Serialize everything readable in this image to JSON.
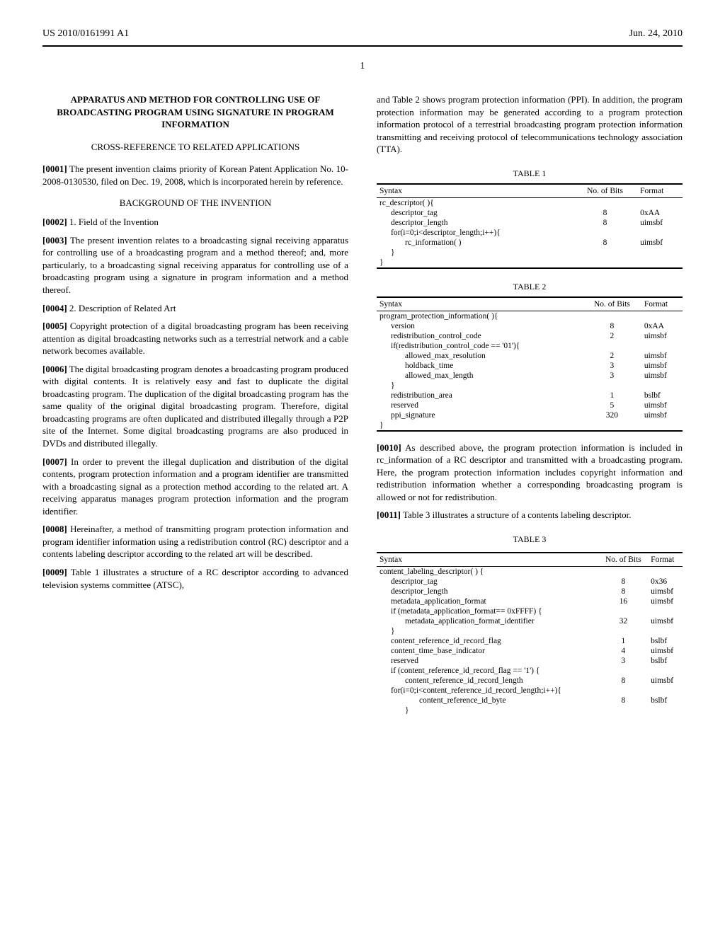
{
  "header": {
    "pub_number": "US 2010/0161991 A1",
    "pub_date": "Jun. 24, 2010"
  },
  "page_number": "1",
  "left_col": {
    "title": "APPARATUS AND METHOD FOR CONTROLLING USE OF BROADCASTING PROGRAM USING SIGNATURE IN PROGRAM INFORMATION",
    "cross_ref_head": "CROSS-REFERENCE TO RELATED APPLICATIONS",
    "p1_num": "[0001]",
    "p1": "The present invention claims priority of Korean Patent Application No. 10-2008-0130530, filed on Dec. 19, 2008, which is incorporated herein by reference.",
    "bg_head": "BACKGROUND OF THE INVENTION",
    "p2_num": "[0002]",
    "p2": "1. Field of the Invention",
    "p3_num": "[0003]",
    "p3": "The present invention relates to a broadcasting signal receiving apparatus for controlling use of a broadcasting program and a method thereof; and, more particularly, to a broadcasting signal receiving apparatus for controlling use of a broadcasting program using a signature in program information and a method thereof.",
    "p4_num": "[0004]",
    "p4": "2. Description of Related Art",
    "p5_num": "[0005]",
    "p5": "Copyright protection of a digital broadcasting program has been receiving attention as digital broadcasting networks such as a terrestrial network and a cable network becomes available.",
    "p6_num": "[0006]",
    "p6": "The digital broadcasting program denotes a broadcasting program produced with digital contents. It is relatively easy and fast to duplicate the digital broadcasting program. The duplication of the digital broadcasting program has the same quality of the original digital broadcasting program. Therefore, digital broadcasting programs are often duplicated and distributed illegally through a P2P site of the Internet. Some digital broadcasting programs are also produced in DVDs and distributed illegally.",
    "p7_num": "[0007]",
    "p7": "In order to prevent the illegal duplication and distribution of the digital contents, program protection information and a program identifier are transmitted with a broadcasting signal as a protection method according to the related art. A receiving apparatus manages program protection information and the program identifier.",
    "p8_num": "[0008]",
    "p8": "Hereinafter, a method of transmitting program protection information and program identifier information using a redistribution control (RC) descriptor and a contents labeling descriptor according to the related art will be described.",
    "p9_num": "[0009]",
    "p9": "Table 1 illustrates a structure of a RC descriptor according to advanced television systems committee (ATSC),"
  },
  "right_col": {
    "intro": "and Table 2 shows program protection information (PPI). In addition, the program protection information may be generated according to a program protection information protocol of a terrestrial broadcasting program protection information transmitting and receiving protocol of telecommunications technology association (TTA).",
    "table1_caption": "TABLE 1",
    "table1": {
      "headers": [
        "Syntax",
        "No. of Bits",
        "Format"
      ],
      "rows": [
        {
          "s": "rc_descriptor( ){",
          "b": "",
          "f": "",
          "ind": 0
        },
        {
          "s": "descriptor_tag",
          "b": "8",
          "f": "0xAA",
          "ind": 1
        },
        {
          "s": "descriptor_length",
          "b": "8",
          "f": "uimsbf",
          "ind": 1
        },
        {
          "s": "for(i=0;i<descriptor_length;i++){",
          "b": "",
          "f": "",
          "ind": 1
        },
        {
          "s": "rc_information( )",
          "b": "8",
          "f": "uimsbf",
          "ind": 2
        },
        {
          "s": "}",
          "b": "",
          "f": "",
          "ind": 1
        },
        {
          "s": "}",
          "b": "",
          "f": "",
          "ind": 0
        }
      ]
    },
    "table2_caption": "TABLE 2",
    "table2": {
      "headers": [
        "Syntax",
        "No. of Bits",
        "Format"
      ],
      "rows": [
        {
          "s": "program_protection_information( ){",
          "b": "",
          "f": "",
          "ind": 0
        },
        {
          "s": "version",
          "b": "8",
          "f": "0xAA",
          "ind": 1
        },
        {
          "s": "redistribution_control_code",
          "b": "2",
          "f": "uimsbf",
          "ind": 1
        },
        {
          "s": "if(redistribution_control_code == '01'){",
          "b": "",
          "f": "",
          "ind": 1
        },
        {
          "s": "allowed_max_resolution",
          "b": "2",
          "f": "uimsbf",
          "ind": 2
        },
        {
          "s": "holdback_time",
          "b": "3",
          "f": "uimsbf",
          "ind": 2
        },
        {
          "s": "allowed_max_length",
          "b": "3",
          "f": "uimsbf",
          "ind": 2
        },
        {
          "s": "}",
          "b": "",
          "f": "",
          "ind": 1
        },
        {
          "s": "redistribution_area",
          "b": "1",
          "f": "bslbf",
          "ind": 1
        },
        {
          "s": "reserved",
          "b": "5",
          "f": "uimsbf",
          "ind": 1
        },
        {
          "s": "ppi_signature",
          "b": "320",
          "f": "uimsbf",
          "ind": 1
        },
        {
          "s": "}",
          "b": "",
          "f": "",
          "ind": 0
        }
      ]
    },
    "p10_num": "[0010]",
    "p10": "As described above, the program protection information is included in rc_information of a RC descriptor and transmitted with a broadcasting program. Here, the program protection information includes copyright information and redistribution information whether a corresponding broadcasting program is allowed or not for redistribution.",
    "p11_num": "[0011]",
    "p11": "Table 3 illustrates a structure of a contents labeling descriptor.",
    "table3_caption": "TABLE 3",
    "table3": {
      "headers": [
        "Syntax",
        "No. of Bits",
        "Format"
      ],
      "rows": [
        {
          "s": "content_labeling_descriptor( ) {",
          "b": "",
          "f": "",
          "ind": 0
        },
        {
          "s": "descriptor_tag",
          "b": "8",
          "f": "0x36",
          "ind": 1
        },
        {
          "s": "descriptor_length",
          "b": "8",
          "f": "uimsbf",
          "ind": 1
        },
        {
          "s": "metadata_application_format",
          "b": "16",
          "f": "uimsbf",
          "ind": 1
        },
        {
          "s": "if          (metadata_application_format== 0xFFFF) {",
          "b": "",
          "f": "",
          "ind": 1
        },
        {
          "s": "metadata_application_format_identifier",
          "b": "32",
          "f": "uimsbf",
          "ind": 2
        },
        {
          "s": "}",
          "b": "",
          "f": "",
          "ind": 1
        },
        {
          "s": "content_reference_id_record_flag",
          "b": "1",
          "f": "bslbf",
          "ind": 1
        },
        {
          "s": "content_time_base_indicator",
          "b": "4",
          "f": "uimsbf",
          "ind": 1
        },
        {
          "s": "reserved",
          "b": "3",
          "f": "bslbf",
          "ind": 1
        },
        {
          "s": "if          (content_reference_id_record_flag == '1') {",
          "b": "",
          "f": "",
          "ind": 1
        },
        {
          "s": "content_reference_id_record_length",
          "b": "8",
          "f": "uimsbf",
          "ind": 2
        },
        {
          "s": "for(i=0;i<content_reference_id_record_length;i++){",
          "b": "",
          "f": "",
          "ind": 1
        },
        {
          "s": "content_reference_id_byte",
          "b": "8",
          "f": "bslbf",
          "ind": 3
        },
        {
          "s": "}",
          "b": "",
          "f": "",
          "ind": 2
        }
      ]
    }
  }
}
